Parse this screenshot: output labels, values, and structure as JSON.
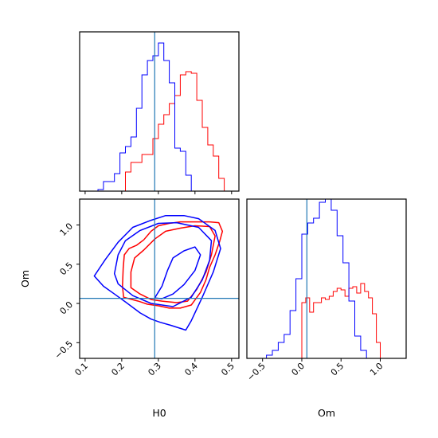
{
  "chart_data": {
    "type": "corner",
    "parameters": [
      "H0",
      "Om"
    ],
    "truths": {
      "H0": 0.29,
      "Om": 0.065
    },
    "colors": {
      "series_1": "#ff0000",
      "series_2": "#0000ff",
      "truth": "#1f77b4"
    },
    "xlabels": {
      "H0": "H0",
      "Om": "Om"
    },
    "ylabels": {
      "Om": "Om"
    },
    "ticks": {
      "H0": {
        "values": [
          0.1,
          0.2,
          0.3,
          0.4,
          0.5
        ],
        "labels": [
          "0.1",
          "0.2",
          "0.3",
          "0.4",
          "0.5"
        ]
      },
      "Om": {
        "values": [
          -0.5,
          0.0,
          0.5,
          1.0
        ],
        "labels": [
          "−0.5",
          "0.0",
          "0.5",
          "1.0"
        ]
      }
    },
    "ranges": {
      "H0": [
        0.085,
        0.52
      ],
      "Om": [
        -0.7,
        1.33
      ]
    },
    "panels": [
      {
        "kind": "hist1d",
        "param": "H0",
        "series": [
          {
            "name": "series_1",
            "color": "#ff0000",
            "bins_start": 0.21,
            "bin_width": 0.015,
            "heights": [
              0.12,
              0.18,
              0.18,
              0.23,
              0.23,
              0.33,
              0.42,
              0.48,
              0.55,
              0.6,
              0.73,
              0.75,
              0.74,
              0.57,
              0.4,
              0.29,
              0.22,
              0.08
            ]
          },
          {
            "name": "series_2",
            "color": "#0000ff",
            "bins_start": 0.135,
            "bin_width": 0.015,
            "heights": [
              0.01,
              0.06,
              0.06,
              0.11,
              0.24,
              0.28,
              0.34,
              0.52,
              0.73,
              0.82,
              0.85,
              0.93,
              0.82,
              0.68,
              0.27,
              0.25,
              0.1
            ]
          }
        ]
      },
      {
        "kind": "contour2d",
        "x_param": "H0",
        "y_param": "Om",
        "series": [
          {
            "name": "series_1",
            "color": "#ff0000",
            "levels": [
              [
                [
                  0.205,
                  0.08
                ],
                [
                  0.202,
                  0.22
                ],
                [
                  0.204,
                  0.45
                ],
                [
                  0.207,
                  0.62
                ],
                [
                  0.22,
                  0.7
                ],
                [
                  0.24,
                  0.74
                ],
                [
                  0.26,
                  0.81
                ],
                [
                  0.28,
                  0.92
                ],
                [
                  0.3,
                  0.99
                ],
                [
                  0.33,
                  1.02
                ],
                [
                  0.36,
                  1.04
                ],
                [
                  0.4,
                  1.04
                ],
                [
                  0.44,
                  1.04
                ],
                [
                  0.465,
                  1.03
                ],
                [
                  0.475,
                  0.92
                ],
                [
                  0.468,
                  0.8
                ],
                [
                  0.455,
                  0.62
                ],
                [
                  0.44,
                  0.46
                ],
                [
                  0.43,
                  0.3
                ],
                [
                  0.415,
                  0.14
                ],
                [
                  0.39,
                  -0.02
                ],
                [
                  0.36,
                  -0.06
                ],
                [
                  0.33,
                  -0.06
                ],
                [
                  0.3,
                  -0.03
                ],
                [
                  0.27,
                  -0.01
                ],
                [
                  0.245,
                  0.03
                ],
                [
                  0.22,
                  0.06
                ],
                [
                  0.205,
                  0.08
                ]
              ],
              [
                [
                  0.225,
                  0.2
                ],
                [
                  0.225,
                  0.4
                ],
                [
                  0.235,
                  0.58
                ],
                [
                  0.26,
                  0.68
                ],
                [
                  0.29,
                  0.82
                ],
                [
                  0.32,
                  0.92
                ],
                [
                  0.36,
                  0.96
                ],
                [
                  0.4,
                  0.99
                ],
                [
                  0.44,
                  0.98
                ],
                [
                  0.455,
                  0.86
                ],
                [
                  0.445,
                  0.62
                ],
                [
                  0.43,
                  0.4
                ],
                [
                  0.405,
                  0.18
                ],
                [
                  0.38,
                  0.03
                ],
                [
                  0.35,
                  0.01
                ],
                [
                  0.31,
                  0.03
                ],
                [
                  0.28,
                  0.05
                ],
                [
                  0.25,
                  0.12
                ],
                [
                  0.225,
                  0.2
                ]
              ]
            ]
          },
          {
            "name": "series_2",
            "color": "#0000ff",
            "levels": [
              [
                [
                  0.125,
                  0.35
                ],
                [
                  0.15,
                  0.22
                ],
                [
                  0.18,
                  0.12
                ],
                [
                  0.21,
                  0.02
                ],
                [
                  0.25,
                  -0.12
                ],
                [
                  0.28,
                  -0.2
                ],
                [
                  0.305,
                  -0.24
                ],
                [
                  0.335,
                  -0.28
                ],
                [
                  0.375,
                  -0.34
                ],
                [
                  0.39,
                  -0.22
                ],
                [
                  0.42,
                  0.08
                ],
                [
                  0.45,
                  0.4
                ],
                [
                  0.47,
                  0.7
                ],
                [
                  0.455,
                  0.93
                ],
                [
                  0.41,
                  1.08
                ],
                [
                  0.37,
                  1.12
                ],
                [
                  0.32,
                  1.12
                ],
                [
                  0.28,
                  1.06
                ],
                [
                  0.23,
                  0.97
                ],
                [
                  0.19,
                  0.78
                ],
                [
                  0.155,
                  0.56
                ],
                [
                  0.125,
                  0.35
                ]
              ],
              [
                [
                  0.18,
                  0.38
                ],
                [
                  0.19,
                  0.62
                ],
                [
                  0.21,
                  0.8
                ],
                [
                  0.25,
                  0.93
                ],
                [
                  0.3,
                  1.02
                ],
                [
                  0.35,
                  1.03
                ],
                [
                  0.41,
                  0.97
                ],
                [
                  0.445,
                  0.8
                ],
                [
                  0.44,
                  0.55
                ],
                [
                  0.42,
                  0.3
                ],
                [
                  0.39,
                  0.08
                ],
                [
                  0.34,
                  -0.04
                ],
                [
                  0.28,
                  0.0
                ],
                [
                  0.23,
                  0.1
                ],
                [
                  0.19,
                  0.25
                ],
                [
                  0.18,
                  0.38
                ]
              ],
              [
                [
                  0.29,
                  0.07
                ],
                [
                  0.31,
                  0.22
                ],
                [
                  0.325,
                  0.42
                ],
                [
                  0.34,
                  0.58
                ],
                [
                  0.37,
                  0.67
                ],
                [
                  0.4,
                  0.72
                ],
                [
                  0.415,
                  0.62
                ],
                [
                  0.4,
                  0.42
                ],
                [
                  0.37,
                  0.24
                ],
                [
                  0.34,
                  0.12
                ],
                [
                  0.31,
                  0.06
                ],
                [
                  0.29,
                  0.07
                ]
              ]
            ]
          }
        ]
      },
      {
        "kind": "hist1d",
        "param": "Om",
        "series": [
          {
            "name": "series_1",
            "color": "#ff0000",
            "bins_start": 0.0,
            "bin_width": 0.05,
            "heights": [
              0.35,
              0.38,
              0.29,
              0.35,
              0.35,
              0.38,
              0.37,
              0.39,
              0.42,
              0.44,
              0.43,
              0.39,
              0.44,
              0.45,
              0.41,
              0.47,
              0.42,
              0.38,
              0.28,
              0.1
            ]
          },
          {
            "name": "series_2",
            "color": "#0000ff",
            "bins_start": -0.45,
            "bin_width": 0.075,
            "heights": [
              0.02,
              0.05,
              0.1,
              0.15,
              0.3,
              0.5,
              0.78,
              0.85,
              0.88,
              0.98,
              1.0,
              0.93,
              0.77,
              0.6,
              0.36,
              0.14,
              0.05
            ]
          }
        ]
      }
    ]
  }
}
